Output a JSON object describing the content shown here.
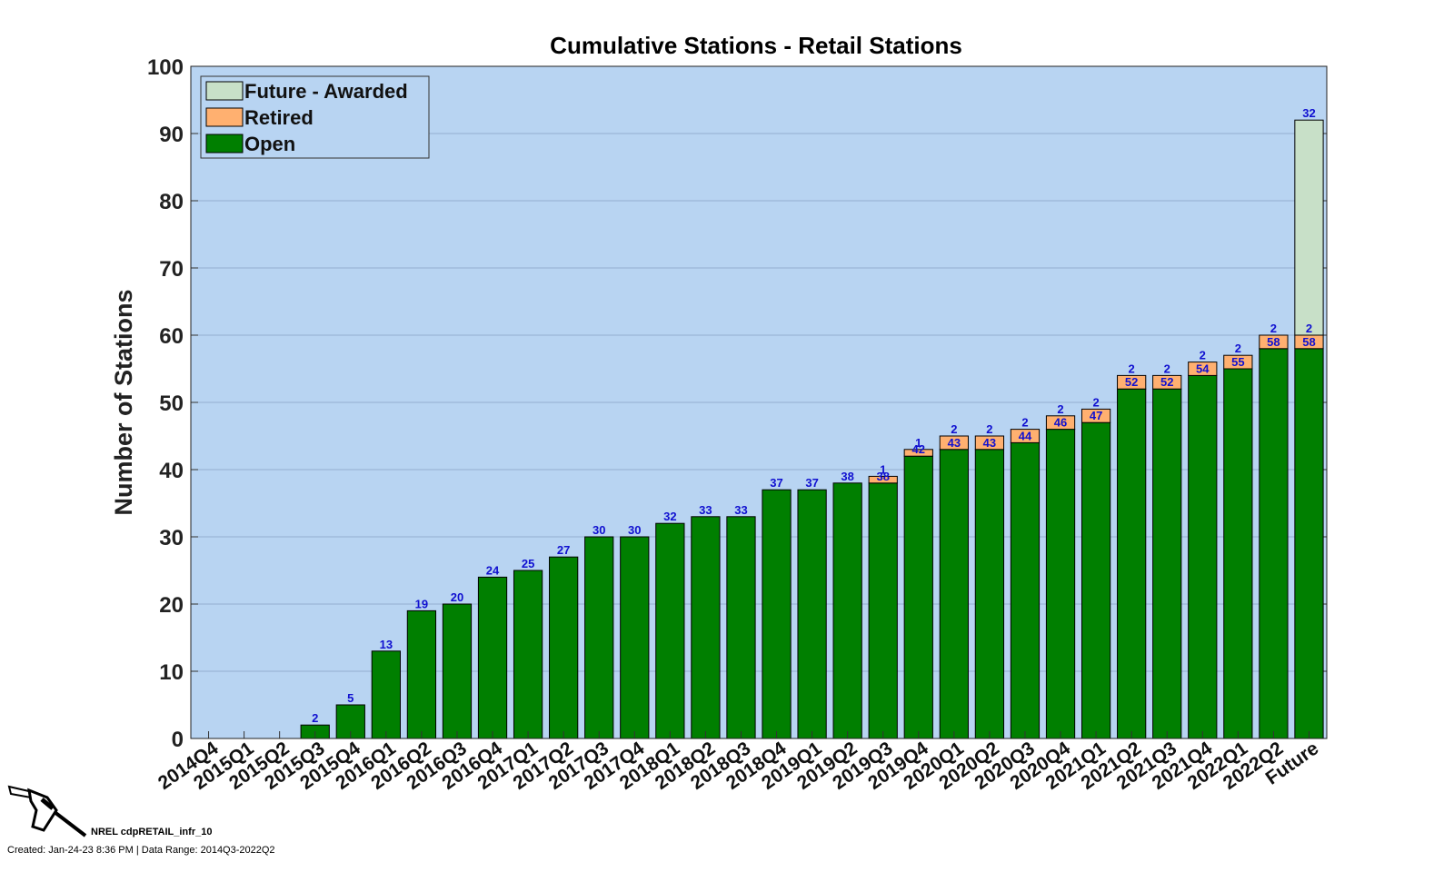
{
  "chart_data": {
    "type": "bar",
    "stacked": true,
    "title": "Cumulative Stations - Retail Stations",
    "xlabel": "",
    "ylabel": "Number of Stations",
    "ylim": [
      0,
      100
    ],
    "yticks": [
      0,
      10,
      20,
      30,
      40,
      50,
      60,
      70,
      80,
      90,
      100
    ],
    "grid": true,
    "legend_position": "top-left",
    "categories": [
      "2014Q4",
      "2015Q1",
      "2015Q2",
      "2015Q3",
      "2015Q4",
      "2016Q1",
      "2016Q2",
      "2016Q3",
      "2016Q4",
      "2017Q1",
      "2017Q2",
      "2017Q3",
      "2017Q4",
      "2018Q1",
      "2018Q2",
      "2018Q3",
      "2018Q4",
      "2019Q1",
      "2019Q2",
      "2019Q3",
      "2019Q4",
      "2020Q1",
      "2020Q2",
      "2020Q3",
      "2020Q4",
      "2021Q1",
      "2021Q2",
      "2021Q3",
      "2021Q4",
      "2022Q1",
      "2022Q2",
      "Future"
    ],
    "series": [
      {
        "name": "Open",
        "color": "#007f00",
        "values": [
          0,
          0,
          0,
          2,
          5,
          13,
          19,
          20,
          24,
          25,
          27,
          30,
          30,
          32,
          33,
          33,
          37,
          37,
          38,
          38,
          42,
          43,
          43,
          44,
          46,
          47,
          52,
          52,
          54,
          55,
          58,
          58
        ]
      },
      {
        "name": "Retired",
        "color": "#ffb070",
        "values": [
          0,
          0,
          0,
          0,
          0,
          0,
          0,
          0,
          0,
          0,
          0,
          0,
          0,
          0,
          0,
          0,
          0,
          0,
          0,
          1,
          1,
          2,
          2,
          2,
          2,
          2,
          2,
          2,
          2,
          2,
          2,
          2
        ]
      },
      {
        "name": "Future - Awarded",
        "color": "#c8e0c8",
        "values": [
          0,
          0,
          0,
          0,
          0,
          0,
          0,
          0,
          0,
          0,
          0,
          0,
          0,
          0,
          0,
          0,
          0,
          0,
          0,
          0,
          0,
          0,
          0,
          0,
          0,
          0,
          0,
          0,
          0,
          0,
          0,
          32
        ]
      }
    ],
    "legend_order": [
      "Future - Awarded",
      "Retired",
      "Open"
    ],
    "colors": {
      "plot_background": "#b8d4f2",
      "label_color": "#1010d0"
    }
  },
  "footer": {
    "identifier": "NREL cdpRETAIL_infr_10",
    "created": "Created: Jan-24-23  8:36 PM | Data Range: 2014Q3-2022Q2"
  }
}
